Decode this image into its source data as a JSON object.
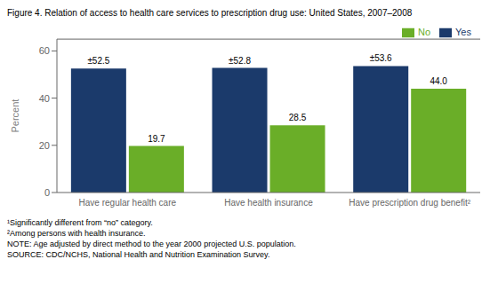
{
  "chart_data": {
    "type": "bar",
    "title": "Figure 4. Relation of access to health care services to prescription drug use: United States, 2007–2008",
    "categories": [
      "Have regular health care",
      "Have health insurance",
      "Have prescription drug benefit²"
    ],
    "series": [
      {
        "name": "Yes",
        "color": "#1B3A6B",
        "values": [
          52.5,
          52.8,
          53.6
        ],
        "value_labels": [
          "±52.5",
          "±52.8",
          "±53.6"
        ]
      },
      {
        "name": "No",
        "color": "#6AAE28",
        "values": [
          19.7,
          28.5,
          44.0
        ],
        "value_labels": [
          "19.7",
          "28.5",
          "44.0"
        ]
      }
    ],
    "ylabel": "Percent",
    "ylim": [
      0,
      65
    ],
    "yticks": [
      0,
      20,
      40,
      60
    ],
    "grid": false,
    "legend": "upper right",
    "data_labels": true,
    "annotations": [
      "¹Significantly different from “no” category.",
      "²Among persons with health insurance.",
      "NOTE: Age adjusted by direct method to the year 2000 projected U.S. population.",
      "SOURCE: CDC/NCHS, National Health and Nutrition Examination Survey."
    ]
  }
}
